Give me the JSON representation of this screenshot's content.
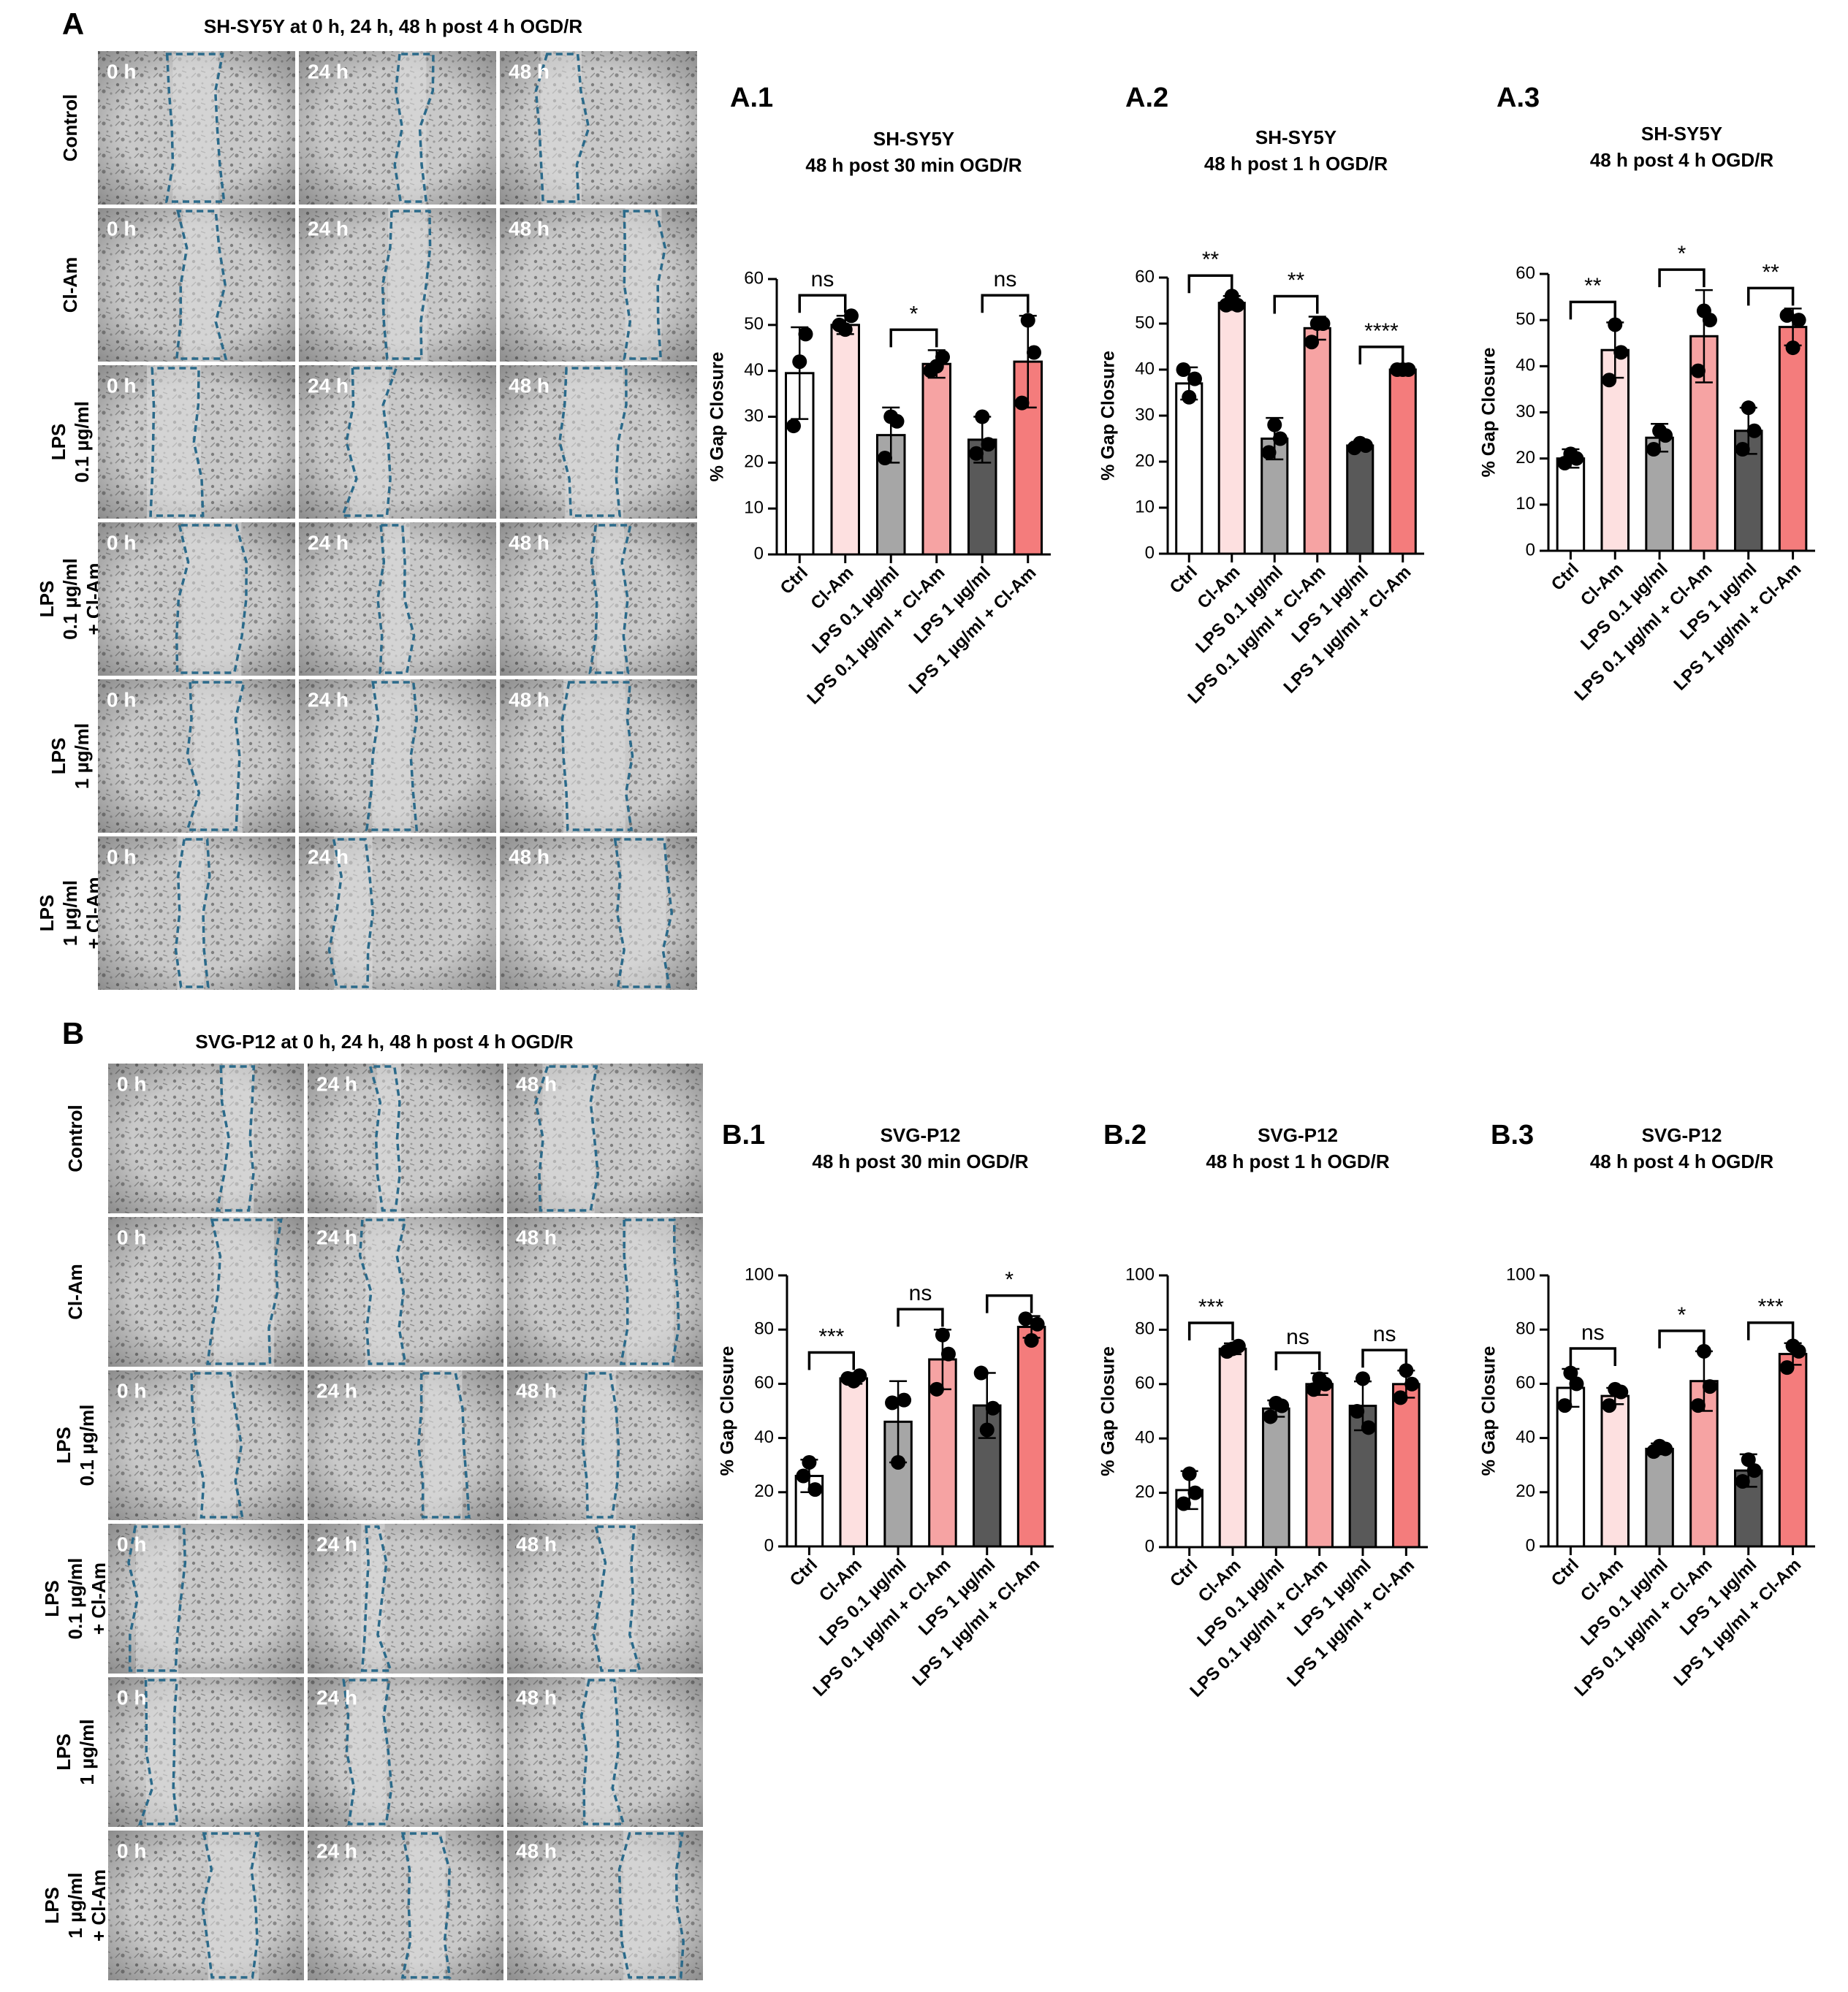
{
  "image_panels": [
    {
      "letter": "A",
      "title": "SH-SY5Y at 0 h, 24 h, 48 h post 4 h OGD/R",
      "rows": [
        {
          "label": [
            "Control"
          ],
          "times": [
            "0 h",
            "24 h",
            "48 h"
          ]
        },
        {
          "label": [
            "Cl-Am"
          ],
          "times": [
            "0 h",
            "24 h",
            "48 h"
          ]
        },
        {
          "label": [
            "LPS",
            "0.1 µg/ml"
          ],
          "times": [
            "0 h",
            "24 h",
            "48 h"
          ]
        },
        {
          "label": [
            "LPS",
            "0.1 µg/ml",
            "+ Cl-Am"
          ],
          "times": [
            "0 h",
            "24 h",
            "48 h"
          ]
        },
        {
          "label": [
            "LPS",
            "1 µg/ml"
          ],
          "times": [
            "0 h",
            "24 h",
            "48 h"
          ]
        },
        {
          "label": [
            "LPS",
            "1 µg/ml",
            "+ Cl-Am"
          ],
          "times": [
            "0 h",
            "24 h",
            "48 h"
          ]
        }
      ]
    },
    {
      "letter": "B",
      "title": "SVG-P12  at 0 h, 24 h, 48 h post 4 h OGD/R",
      "rows": [
        {
          "label": [
            "Control"
          ],
          "times": [
            "0 h",
            "24 h",
            "48 h"
          ]
        },
        {
          "label": [
            "Cl-Am"
          ],
          "times": [
            "0 h",
            "24 h",
            "48 h"
          ]
        },
        {
          "label": [
            "LPS",
            "0.1 µg/ml"
          ],
          "times": [
            "0 h",
            "24 h",
            "48 h"
          ]
        },
        {
          "label": [
            "LPS",
            "0.1 µg/ml",
            "+ Cl-Am"
          ],
          "times": [
            "0 h",
            "24 h",
            "48 h"
          ]
        },
        {
          "label": [
            "LPS",
            "1 µg/ml"
          ],
          "times": [
            "0 h",
            "24 h",
            "48 h"
          ]
        },
        {
          "label": [
            "LPS",
            "1 µg/ml",
            "+ Cl-Am"
          ],
          "times": [
            "0 h",
            "24 h",
            "48 h"
          ]
        }
      ]
    }
  ],
  "chart_data": [
    {
      "type": "bar",
      "panel": "A.1",
      "title": [
        "SH-SY5Y",
        "48 h post 30 min OGD/R"
      ],
      "ylabel": "% Gap Closure",
      "categories": [
        "Ctrl",
        "Cl-Am",
        "LPS 0.1 µg/ml",
        "LPS 0.1 µg/ml + Cl-Am",
        "LPS 1 µg/ml",
        "LPS 1 µg/ml + Cl-Am"
      ],
      "colors": [
        "#ffffff",
        "#fde0e0",
        "#a6a6a6",
        "#f6a3a3",
        "#595959",
        "#f47c7c"
      ],
      "values": [
        39.5,
        50,
        26,
        41.5,
        25,
        42
      ],
      "errors": [
        10,
        2,
        6,
        3,
        5,
        10
      ],
      "points": [
        [
          28,
          42,
          48
        ],
        [
          50,
          49,
          52
        ],
        [
          21,
          30,
          29
        ],
        [
          40,
          41,
          43
        ],
        [
          22,
          30,
          24
        ],
        [
          33,
          51,
          44
        ]
      ],
      "significance": [
        "ns",
        "*",
        "ns"
      ],
      "ylim": [
        0,
        60
      ],
      "yticks": [
        0,
        10,
        20,
        30,
        40,
        50,
        60
      ]
    },
    {
      "type": "bar",
      "panel": "A.2",
      "title": [
        "SH-SY5Y",
        "48 h post 1 h OGD/R"
      ],
      "ylabel": "% Gap Closure",
      "categories": [
        "Ctrl",
        "Cl-Am",
        "LPS 0.1 µg/ml",
        "LPS 0.1 µg/ml + Cl-Am",
        "LPS 1 µg/ml",
        "LPS 1 µg/ml + Cl-Am"
      ],
      "colors": [
        "#ffffff",
        "#fde0e0",
        "#a6a6a6",
        "#f6a3a3",
        "#595959",
        "#f47c7c"
      ],
      "values": [
        37,
        54.5,
        25,
        49,
        23.5,
        40
      ],
      "errors": [
        3.5,
        1.5,
        4.5,
        2.5,
        0.8,
        0.5
      ],
      "points": [
        [
          40,
          34,
          38
        ],
        [
          54,
          56,
          54
        ],
        [
          22,
          28,
          25
        ],
        [
          46,
          50,
          50
        ],
        [
          23,
          24,
          23.5
        ],
        [
          40,
          40,
          40
        ]
      ],
      "significance": [
        "**",
        "**",
        "****"
      ],
      "ylim": [
        0,
        60
      ],
      "yticks": [
        0,
        10,
        20,
        30,
        40,
        50,
        60
      ]
    },
    {
      "type": "bar",
      "panel": "A.3",
      "title": [
        "SH-SY5Y",
        "48 h post 4 h OGD/R"
      ],
      "ylabel": "% Gap Closure",
      "categories": [
        "Ctrl",
        "Cl-Am",
        "LPS 0.1 µg/ml",
        "LPS 0.1 µg/ml + Cl-Am",
        "LPS 1 µg/ml",
        "LPS 1 µg/ml + Cl-Am"
      ],
      "colors": [
        "#ffffff",
        "#fde0e0",
        "#a6a6a6",
        "#f6a3a3",
        "#595959",
        "#f47c7c"
      ],
      "values": [
        20,
        43.5,
        24.5,
        46.5,
        26,
        48.5
      ],
      "errors": [
        2,
        6,
        3,
        10,
        5,
        4
      ],
      "points": [
        [
          19,
          21,
          20
        ],
        [
          37,
          49,
          43
        ],
        [
          22,
          26,
          25
        ],
        [
          39,
          52,
          50
        ],
        [
          22,
          31,
          26
        ],
        [
          51,
          44,
          50
        ]
      ],
      "significance": [
        "**",
        "*",
        "**"
      ],
      "ylim": [
        0,
        60
      ],
      "yticks": [
        0,
        10,
        20,
        30,
        40,
        50,
        60
      ]
    },
    {
      "type": "bar",
      "panel": "B.1",
      "title": [
        "SVG-P12",
        "48 h post 30 min OGD/R"
      ],
      "ylabel": "% Gap Closure",
      "categories": [
        "Ctrl",
        "Cl-Am",
        "LPS 0.1 µg/ml",
        "LPS 0.1 µg/ml + Cl-Am",
        "LPS 1 µg/ml",
        "LPS 1 µg/ml + Cl-Am"
      ],
      "colors": [
        "#ffffff",
        "#fde0e0",
        "#a6a6a6",
        "#f6a3a3",
        "#595959",
        "#f47c7c"
      ],
      "values": [
        26,
        62,
        46,
        69,
        52,
        81
      ],
      "errors": [
        6,
        2,
        15,
        11,
        12,
        4
      ],
      "points": [
        [
          26,
          31,
          21
        ],
        [
          62,
          61,
          63
        ],
        [
          53,
          31,
          54
        ],
        [
          58,
          78,
          71
        ],
        [
          64,
          43,
          51
        ],
        [
          84,
          76,
          82
        ]
      ],
      "significance": [
        "***",
        "ns",
        "*"
      ],
      "ylim": [
        0,
        100
      ],
      "yticks": [
        0,
        20,
        40,
        60,
        80,
        100
      ]
    },
    {
      "type": "bar",
      "panel": "B.2",
      "title": [
        "SVG-P12",
        "48 h post 1 h OGD/R"
      ],
      "ylabel": "% Gap Closure",
      "categories": [
        "Ctrl",
        "Cl-Am",
        "LPS 0.1 µg/ml",
        "LPS 0.1 µg/ml + Cl-Am",
        "LPS 1 µg/ml",
        "LPS 1 µg/ml + Cl-Am"
      ],
      "colors": [
        "#ffffff",
        "#fde0e0",
        "#a6a6a6",
        "#f6a3a3",
        "#595959",
        "#f47c7c"
      ],
      "values": [
        21,
        73,
        51,
        60,
        52,
        60
      ],
      "errors": [
        7,
        2,
        3,
        4,
        9,
        5
      ],
      "points": [
        [
          16,
          27,
          20
        ],
        [
          72,
          73,
          74
        ],
        [
          48,
          53,
          52
        ],
        [
          58,
          62,
          60
        ],
        [
          50,
          62,
          44
        ],
        [
          55,
          65,
          60
        ]
      ],
      "significance": [
        "***",
        "ns",
        "ns"
      ],
      "ylim": [
        0,
        100
      ],
      "yticks": [
        0,
        20,
        40,
        60,
        80,
        100
      ]
    },
    {
      "type": "bar",
      "panel": "B.3",
      "title": [
        "SVG-P12",
        "48 h post 4 h OGD/R"
      ],
      "ylabel": "% Gap Closure",
      "categories": [
        "Ctrl",
        "Cl-Am",
        "LPS 0.1 µg/ml",
        "LPS 0.1 µg/ml + Cl-Am",
        "LPS 1 µg/ml",
        "LPS 1 µg/ml + Cl-Am"
      ],
      "colors": [
        "#ffffff",
        "#fde0e0",
        "#a6a6a6",
        "#f6a3a3",
        "#595959",
        "#f47c7c"
      ],
      "values": [
        58.5,
        55.5,
        36,
        61,
        28,
        71
      ],
      "errors": [
        7,
        3,
        2,
        11,
        6,
        4
      ],
      "points": [
        [
          52,
          64,
          60
        ],
        [
          52,
          58,
          57
        ],
        [
          35,
          37,
          36
        ],
        [
          52,
          72,
          59
        ],
        [
          24,
          32,
          28
        ],
        [
          66,
          74,
          72
        ]
      ],
      "significance": [
        "ns",
        "*",
        "***"
      ],
      "ylim": [
        0,
        100
      ],
      "yticks": [
        0,
        20,
        40,
        60,
        80,
        100
      ]
    }
  ]
}
